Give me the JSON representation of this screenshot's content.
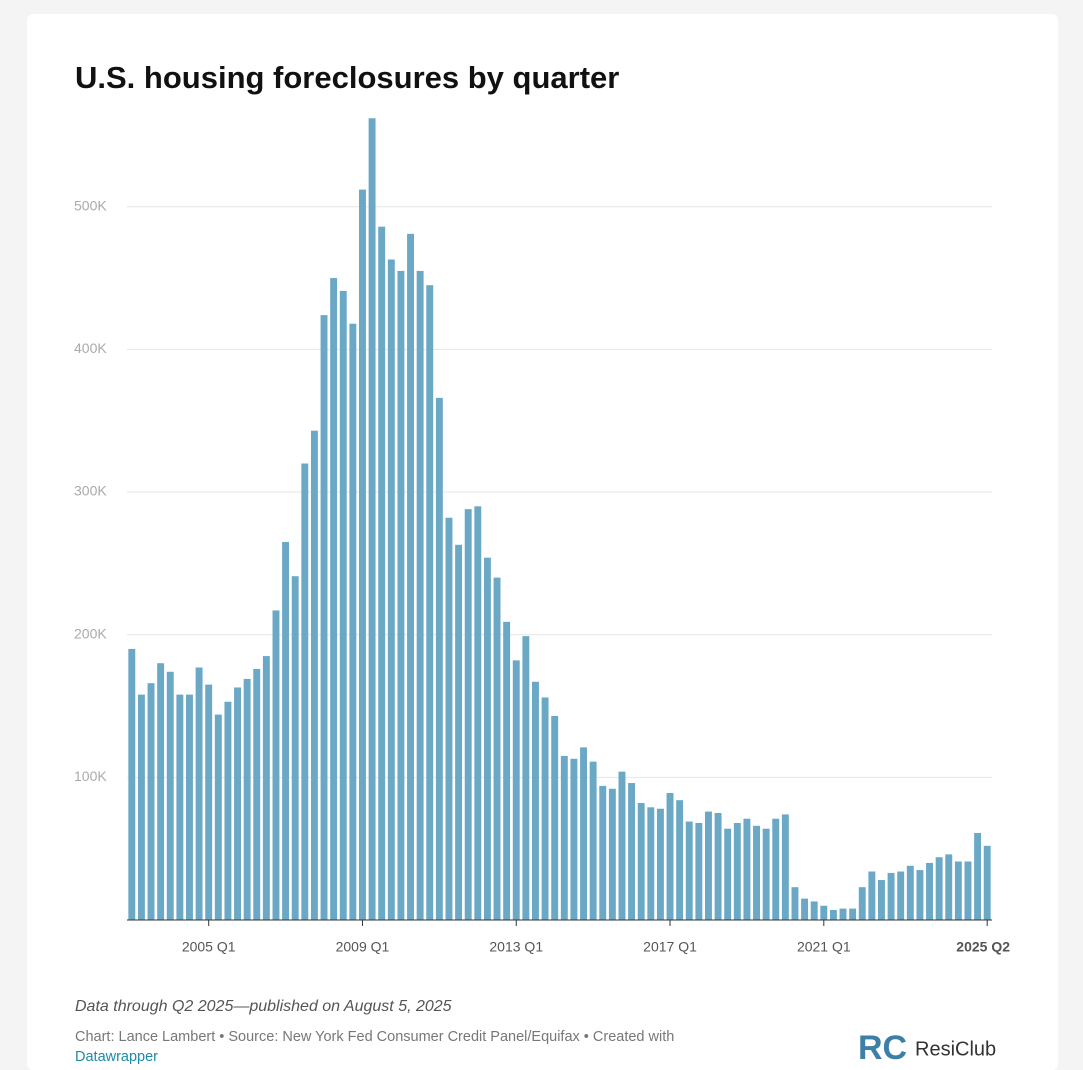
{
  "chart_data": {
    "type": "bar",
    "title": "U.S. housing foreclosures by quarter",
    "categories": [
      null,
      null,
      null,
      null,
      null,
      null,
      null,
      null,
      "2005 Q1",
      null,
      null,
      null,
      null,
      null,
      null,
      null,
      null,
      null,
      null,
      null,
      null,
      null,
      null,
      null,
      "2009 Q1",
      null,
      null,
      null,
      null,
      null,
      null,
      null,
      null,
      null,
      null,
      null,
      null,
      null,
      null,
      null,
      "2013 Q1",
      null,
      null,
      null,
      null,
      null,
      null,
      null,
      null,
      null,
      null,
      null,
      null,
      null,
      null,
      null,
      "2017 Q1",
      null,
      null,
      null,
      null,
      null,
      null,
      null,
      null,
      null,
      null,
      null,
      null,
      null,
      null,
      null,
      "2021 Q1",
      null,
      null,
      null,
      null,
      null,
      null,
      null,
      null,
      null,
      null,
      null,
      null,
      null,
      null,
      null,
      null,
      "2025 Q2"
    ],
    "values": [
      190000,
      158000,
      166000,
      180000,
      174000,
      158000,
      158000,
      177000,
      165000,
      144000,
      153000,
      163000,
      169000,
      176000,
      185000,
      217000,
      265000,
      241000,
      320000,
      343000,
      424000,
      450000,
      441000,
      418000,
      512000,
      562000,
      486000,
      463000,
      455000,
      481000,
      455000,
      445000,
      366000,
      282000,
      263000,
      288000,
      290000,
      254000,
      240000,
      209000,
      182000,
      199000,
      167000,
      156000,
      143000,
      115000,
      113000,
      121000,
      111000,
      94000,
      92000,
      104000,
      96000,
      82000,
      79000,
      78000,
      89000,
      84000,
      69000,
      68000,
      76000,
      75000,
      64000,
      68000,
      71000,
      66000,
      64000,
      71000,
      74000,
      23000,
      15000,
      13000,
      10000,
      7000,
      8000,
      8000,
      23000,
      34000,
      28000,
      33000,
      34000,
      38000,
      35000,
      40000,
      44000,
      46000,
      41000,
      41000,
      61000,
      52000
    ],
    "color": "#6aa8c6",
    "ylim": [
      0,
      565000
    ],
    "yticks": [
      {
        "value": 100000,
        "label": "100K"
      },
      {
        "value": 200000,
        "label": "200K"
      },
      {
        "value": 300000,
        "label": "300K"
      },
      {
        "value": 400000,
        "label": "400K"
      },
      {
        "value": 500000,
        "label": "500K"
      }
    ],
    "grid": true,
    "notes": "Data through Q2 2025—published on August 5, 2025",
    "source": "Chart: Lance Lambert • Source: New York Fed Consumer Credit Panel/Equifax • Created with",
    "source_link": "Datawrapper",
    "logo": {
      "mark": "RC",
      "name": "ResiClub"
    }
  }
}
